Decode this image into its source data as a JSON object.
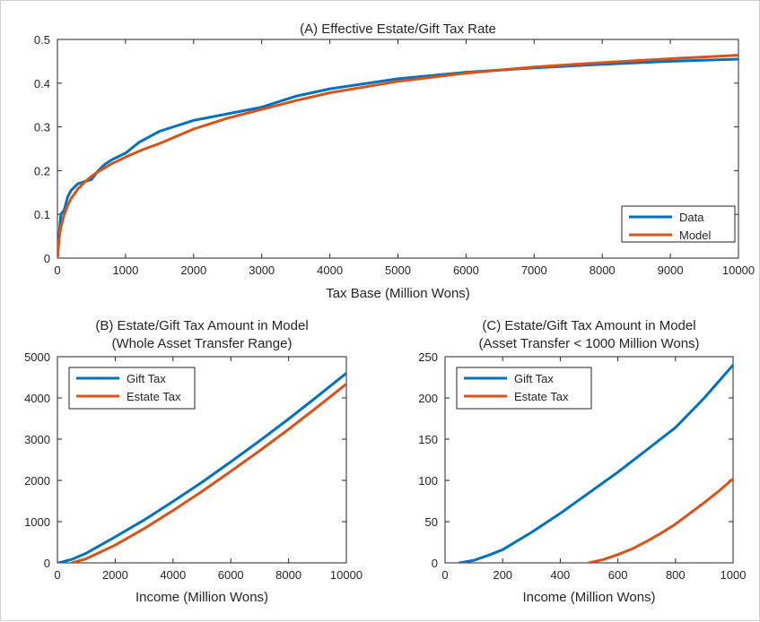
{
  "colors": {
    "blue": "#0072BD",
    "orange": "#D95319",
    "axis": "#262626"
  },
  "chart_data": [
    {
      "type": "line",
      "title": "(A) Effective Estate/Gift Tax Rate",
      "xlabel": "Tax Base (Million Wons)",
      "ylabel": "",
      "xlim": [
        0,
        10000
      ],
      "ylim": [
        0,
        0.5
      ],
      "xticks": [
        0,
        1000,
        2000,
        3000,
        4000,
        5000,
        6000,
        7000,
        8000,
        9000,
        10000
      ],
      "yticks": [
        0,
        0.1,
        0.2,
        0.3,
        0.4,
        0.5
      ],
      "xtick_labels": [
        "0",
        "1000",
        "2000",
        "3000",
        "4000",
        "5000",
        "6000",
        "7000",
        "8000",
        "9000",
        "10000"
      ],
      "ytick_labels": [
        "0",
        "0.1",
        "0.2",
        "0.3",
        "0.4",
        "0.5"
      ],
      "legend_position": "bottom-right",
      "series": [
        {
          "name": "Data",
          "color": "blue",
          "x": [
            0,
            50,
            100,
            150,
            200,
            300,
            400,
            500,
            600,
            700,
            800,
            1000,
            1200,
            1500,
            2000,
            2500,
            3000,
            3500,
            4000,
            5000,
            6000,
            7000,
            8000,
            9000,
            10000
          ],
          "y": [
            0,
            0.1,
            0.11,
            0.14,
            0.155,
            0.17,
            0.175,
            0.18,
            0.2,
            0.215,
            0.225,
            0.24,
            0.265,
            0.29,
            0.315,
            0.33,
            0.345,
            0.37,
            0.387,
            0.41,
            0.425,
            0.435,
            0.443,
            0.45,
            0.455
          ]
        },
        {
          "name": "Model",
          "color": "orange",
          "x": [
            0,
            25,
            50,
            100,
            150,
            200,
            300,
            400,
            500,
            600,
            800,
            1000,
            1250,
            1500,
            2000,
            2500,
            3000,
            3500,
            4000,
            5000,
            6000,
            7000,
            8000,
            9000,
            10000
          ],
          "y": [
            0,
            0.045,
            0.07,
            0.1,
            0.12,
            0.136,
            0.158,
            0.174,
            0.187,
            0.198,
            0.216,
            0.231,
            0.248,
            0.262,
            0.295,
            0.32,
            0.34,
            0.36,
            0.378,
            0.404,
            0.423,
            0.437,
            0.447,
            0.456,
            0.464
          ]
        }
      ]
    },
    {
      "type": "line",
      "title": "(B) Estate/Gift Tax Amount in Model",
      "subtitle": "(Whole Asset Transfer Range)",
      "xlabel": "Income (Million Wons)",
      "ylabel": "",
      "xlim": [
        0,
        10000
      ],
      "ylim": [
        0,
        5000
      ],
      "xticks": [
        0,
        2000,
        4000,
        6000,
        8000,
        10000
      ],
      "yticks": [
        0,
        1000,
        2000,
        3000,
        4000,
        5000
      ],
      "xtick_labels": [
        "0",
        "2000",
        "4000",
        "6000",
        "8000",
        "10000"
      ],
      "ytick_labels": [
        "0",
        "1000",
        "2000",
        "3000",
        "4000",
        "5000"
      ],
      "legend_position": "top-left",
      "series": [
        {
          "name": "Gift Tax",
          "color": "blue",
          "x": [
            50,
            500,
            1000,
            2000,
            3000,
            4000,
            5000,
            6000,
            7000,
            8000,
            9000,
            10000
          ],
          "y": [
            0,
            85,
            235,
            630,
            1040,
            1490,
            1955,
            2450,
            2960,
            3490,
            4040,
            4600
          ]
        },
        {
          "name": "Estate Tax",
          "color": "orange",
          "x": [
            500,
            1000,
            2000,
            3000,
            4000,
            5000,
            6000,
            7000,
            8000,
            9000,
            10000
          ],
          "y": [
            0,
            100,
            430,
            830,
            1270,
            1730,
            2220,
            2720,
            3240,
            3780,
            4340
          ]
        }
      ]
    },
    {
      "type": "line",
      "title": "(C) Estate/Gift Tax Amount in Model",
      "subtitle": "(Asset Transfer < 1000 Million Wons)",
      "xlabel": "Income (Million Wons)",
      "ylabel": "",
      "xlim": [
        0,
        1000
      ],
      "ylim": [
        0,
        250
      ],
      "xticks": [
        0,
        200,
        400,
        600,
        800,
        1000
      ],
      "yticks": [
        0,
        50,
        100,
        150,
        200,
        250
      ],
      "xtick_labels": [
        "0",
        "200",
        "400",
        "600",
        "800",
        "1000"
      ],
      "ytick_labels": [
        "0",
        "50",
        "100",
        "150",
        "200",
        "250"
      ],
      "legend_position": "top-left",
      "series": [
        {
          "name": "Gift Tax",
          "color": "blue",
          "x": [
            50,
            100,
            150,
            200,
            300,
            400,
            500,
            600,
            700,
            800,
            900,
            1000
          ],
          "y": [
            0,
            3,
            9,
            16,
            37,
            60,
            85,
            110,
            137,
            164,
            200,
            240
          ]
        },
        {
          "name": "Estate Tax",
          "color": "orange",
          "x": [
            500,
            550,
            600,
            650,
            700,
            750,
            800,
            850,
            900,
            950,
            1000
          ],
          "y": [
            0,
            4,
            10,
            17,
            26,
            36,
            47,
            60,
            73,
            87,
            102
          ]
        }
      ]
    }
  ]
}
